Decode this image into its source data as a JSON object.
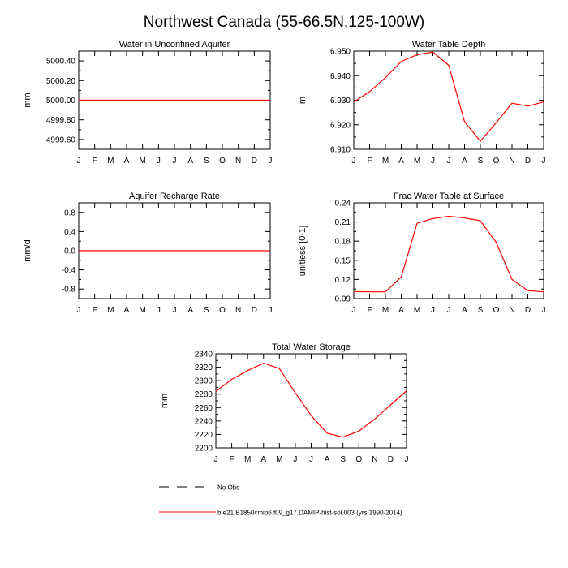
{
  "page": {
    "title": "Northwest Canada (55-66.5N,125-100W)",
    "legend": [
      {
        "label": "No Obs",
        "style": "dashed",
        "color": "#000000"
      },
      {
        "label": "b.e21.B1850cmip6.f09_g17.DAMIP-hist-sol.003 (yrs 1990-2014)",
        "style": "solid",
        "color": "#ff0000"
      }
    ]
  },
  "chart_data": [
    {
      "type": "line",
      "title": "Water in Unconfined Aquifer",
      "ylabel": "mm",
      "categories": [
        "J",
        "F",
        "M",
        "A",
        "M",
        "J",
        "J",
        "A",
        "S",
        "O",
        "N",
        "D",
        "J"
      ],
      "ylim": [
        4999.5,
        5000.5
      ],
      "yticks": [
        4999.6,
        4999.8,
        5000.0,
        5000.2,
        5000.4
      ],
      "ytick_labels": [
        "4999.60",
        "4999.80",
        "5000.00",
        "5000.20",
        "5000.40"
      ],
      "series": [
        {
          "values": [
            5000,
            5000,
            5000,
            5000,
            5000,
            5000,
            5000,
            5000,
            5000,
            5000,
            5000,
            5000,
            5000
          ],
          "color": "#ff0000"
        }
      ]
    },
    {
      "type": "line",
      "title": "Water Table Depth",
      "ylabel": "m",
      "categories": [
        "J",
        "F",
        "M",
        "A",
        "M",
        "J",
        "J",
        "A",
        "S",
        "O",
        "N",
        "D",
        "J"
      ],
      "ylim": [
        6.91,
        6.95
      ],
      "yticks": [
        6.91,
        6.92,
        6.93,
        6.94,
        6.95
      ],
      "ytick_labels": [
        "6.910",
        "6.920",
        "6.930",
        "6.940",
        "6.950"
      ],
      "series": [
        {
          "values": [
            6.9293,
            6.9335,
            6.9392,
            6.9458,
            6.9485,
            6.9496,
            6.9442,
            6.9212,
            6.9133,
            6.9208,
            6.9288,
            6.9276,
            6.9293
          ],
          "color": "#ff0000"
        }
      ]
    },
    {
      "type": "line",
      "title": "Aquifer Recharge Rate",
      "ylabel": "mm/d",
      "categories": [
        "J",
        "F",
        "M",
        "A",
        "M",
        "J",
        "J",
        "A",
        "S",
        "O",
        "N",
        "D",
        "J"
      ],
      "ylim": [
        -1.0,
        1.0
      ],
      "yticks": [
        -0.8,
        -0.4,
        0.0,
        0.4,
        0.8
      ],
      "ytick_labels": [
        "-0.8",
        "-0.4",
        "0.0",
        "0.4",
        "0.8"
      ],
      "series": [
        {
          "values": [
            0,
            0,
            0,
            0,
            0,
            0,
            0,
            0,
            0,
            0,
            0,
            0,
            0
          ],
          "color": "#ff0000"
        }
      ]
    },
    {
      "type": "line",
      "title": "Frac Water Table at Surface",
      "ylabel": "unitless [0-1]",
      "categories": [
        "J",
        "F",
        "M",
        "A",
        "M",
        "J",
        "J",
        "A",
        "S",
        "O",
        "N",
        "D",
        "J"
      ],
      "ylim": [
        0.09,
        0.24
      ],
      "yticks": [
        0.09,
        0.12,
        0.15,
        0.18,
        0.21,
        0.24
      ],
      "ytick_labels": [
        "0.09",
        "0.12",
        "0.15",
        "0.18",
        "0.21",
        "0.24"
      ],
      "series": [
        {
          "values": [
            0.101,
            0.1005,
            0.1005,
            0.124,
            0.208,
            0.2155,
            0.219,
            0.2165,
            0.212,
            0.178,
            0.12,
            0.1025,
            0.1005
          ],
          "color": "#ff0000"
        }
      ]
    },
    {
      "type": "line",
      "title": "Total Water Storage",
      "ylabel": "mm",
      "categories": [
        "J",
        "F",
        "M",
        "A",
        "M",
        "J",
        "J",
        "A",
        "S",
        "O",
        "N",
        "D",
        "J"
      ],
      "ylim": [
        2200,
        2340
      ],
      "yticks": [
        2200,
        2220,
        2240,
        2260,
        2280,
        2300,
        2320,
        2340
      ],
      "ytick_labels": [
        "2200",
        "2220",
        "2240",
        "2260",
        "2280",
        "2300",
        "2320",
        "2340"
      ],
      "series": [
        {
          "values": [
            2284,
            2302,
            2315,
            2326,
            2318,
            2282,
            2248,
            2222,
            2216,
            2225,
            2243,
            2264,
            2285
          ],
          "color": "#ff0000"
        }
      ]
    }
  ]
}
